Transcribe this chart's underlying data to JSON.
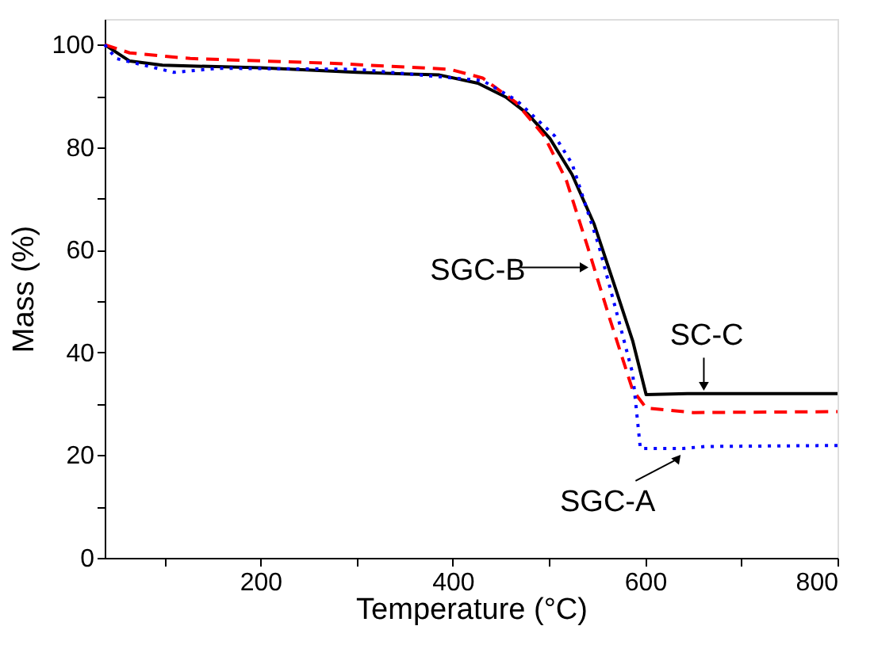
{
  "chart_data": {
    "type": "line",
    "xlabel": "Temperature (°C)",
    "ylabel": "Mass (%)",
    "xlim": [
      38,
      800
    ],
    "ylim": [
      0,
      105
    ],
    "xticks": [
      {
        "value": 100,
        "label": null
      },
      200,
      {
        "value": 300,
        "label": null
      },
      400,
      {
        "value": 500,
        "label": null
      },
      600,
      {
        "value": 700,
        "label": null
      },
      800
    ],
    "yticks": [
      0,
      {
        "value": 10,
        "label": null
      },
      20,
      {
        "value": 30,
        "label": null
      },
      40,
      {
        "value": 50,
        "label": null
      },
      60,
      {
        "value": 70,
        "label": null
      },
      80,
      {
        "value": 90,
        "label": null
      },
      100
    ],
    "grid": false,
    "series": [
      {
        "color": "#000000",
        "line_style": "solid",
        "x": [
          38,
          64,
          98,
          200,
          300,
          386,
          426,
          455,
          478,
          501,
          524,
          547,
          570,
          587,
          601,
          644,
          800
        ],
        "values": [
          100,
          96.8,
          96.0,
          95.5,
          94.6,
          94.1,
          92.5,
          89.8,
          86.5,
          81.7,
          74.7,
          65,
          52,
          42.3,
          31.8,
          32,
          32
        ]
      },
      {
        "color": "#ff0000",
        "line_style": "dashed",
        "x": [
          38,
          64,
          127,
          271,
          397,
          431,
          466,
          495,
          518,
          540,
          563,
          587,
          601,
          650,
          800
        ],
        "values": [
          100,
          98.4,
          97.3,
          96.4,
          95.2,
          93.5,
          88.7,
          82.2,
          73.6,
          60.7,
          46.7,
          32.7,
          29.2,
          28.3,
          28.5
        ]
      },
      {
        "color": "#0000ff",
        "line_style": "dotted",
        "x": [
          38,
          50,
          110,
          156,
          300,
          431,
          466,
          506,
          524,
          552,
          575,
          587,
          595,
          639,
          662,
          800
        ],
        "values": [
          100,
          97.3,
          94.6,
          95.4,
          95.2,
          93,
          89.2,
          82.2,
          76.8,
          60.7,
          44.5,
          35.9,
          21.3,
          21.3,
          21.7,
          21.9
        ]
      }
    ],
    "annotations": [
      {
        "text": "SGC-B",
        "x": 535,
        "y": 56.6
      },
      {
        "text": "SC-C",
        "x": 661,
        "y": 33.7
      },
      {
        "text": "SGC-A",
        "x": 633,
        "y": 19.2
      }
    ]
  }
}
